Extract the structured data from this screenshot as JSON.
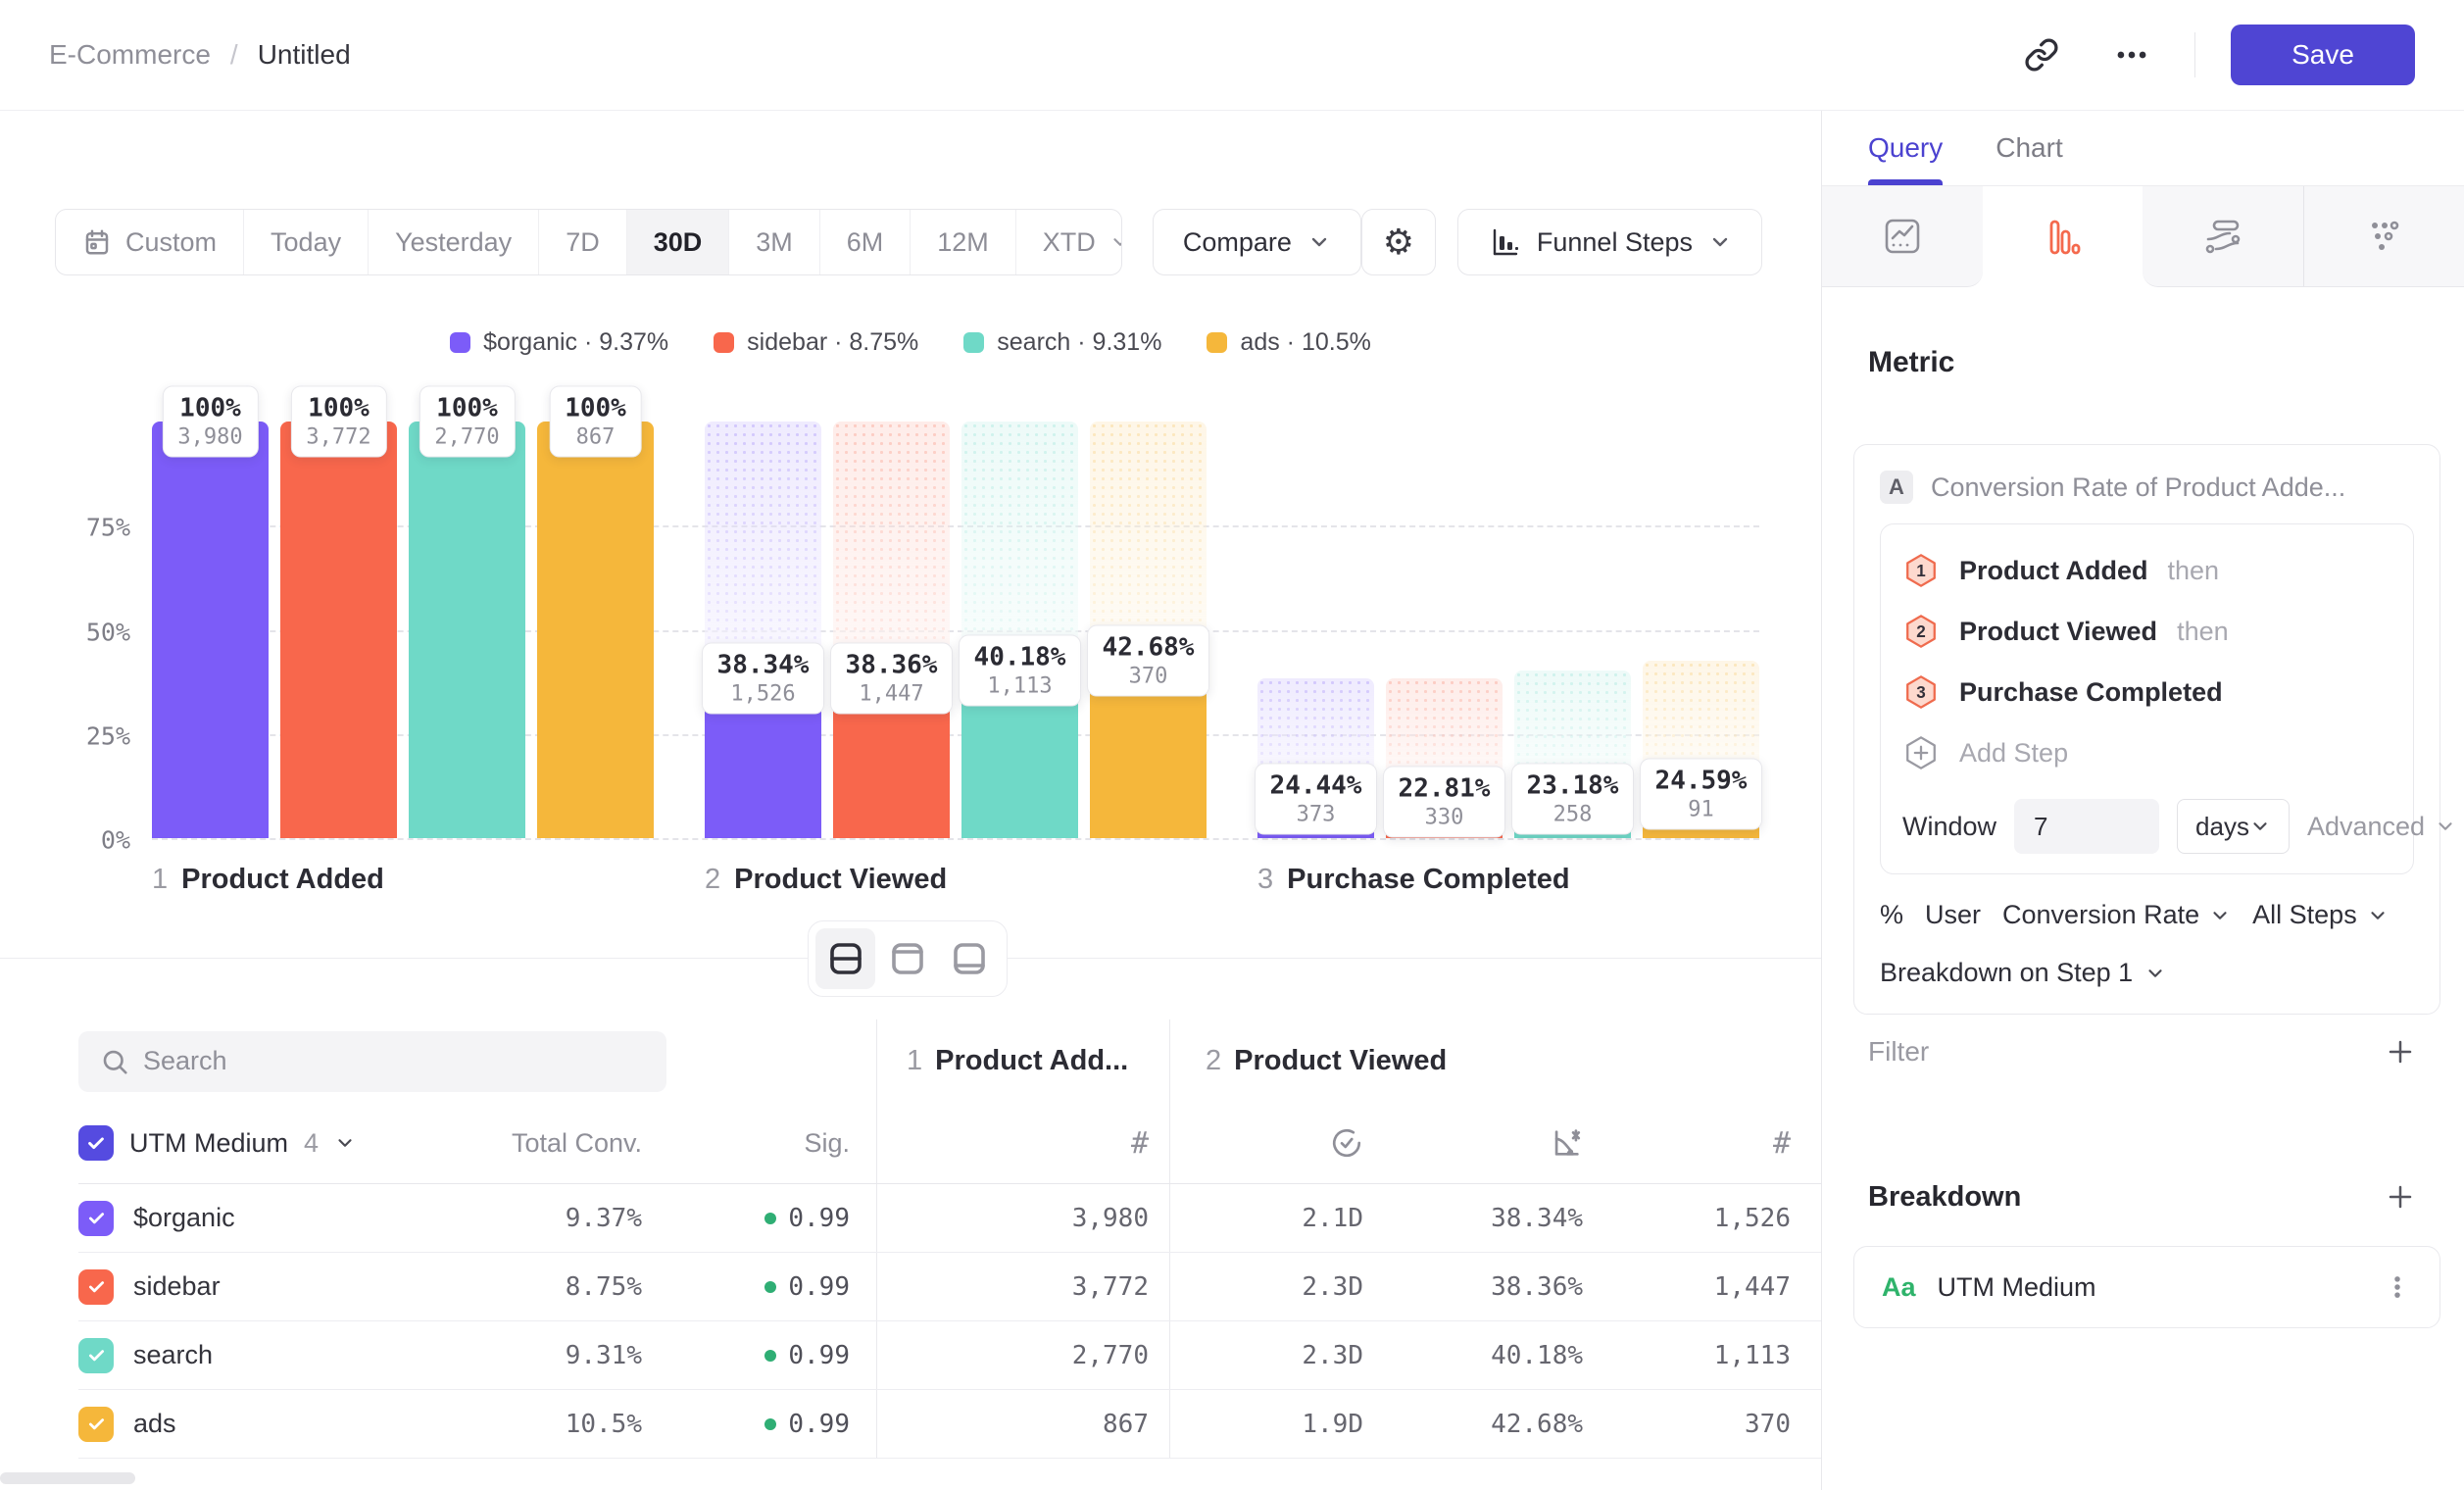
{
  "breadcrumb": {
    "project": "E-Commerce",
    "separator": "/",
    "title": "Untitled"
  },
  "header": {
    "save_label": "Save"
  },
  "toolbar": {
    "date_ranges": [
      "Custom",
      "Today",
      "Yesterday",
      "7D",
      "30D",
      "3M",
      "6M",
      "12M",
      "XTD"
    ],
    "active_range": "30D",
    "compare_label": "Compare",
    "chart_type_label": "Funnel Steps"
  },
  "legend": [
    {
      "label": "$organic",
      "value": "9.37%",
      "color": "#7c5cf8"
    },
    {
      "label": "sidebar",
      "value": "8.75%",
      "color": "#f8674c"
    },
    {
      "label": "search",
      "value": "9.31%",
      "color": "#6fd9c7"
    },
    {
      "label": "ads",
      "value": "10.5%",
      "color": "#f5b73b"
    }
  ],
  "chart_data": {
    "type": "bar",
    "subtype": "funnel-steps",
    "ylim": [
      0,
      100
    ],
    "yticks": [
      {
        "label": "75%",
        "value": 75
      },
      {
        "label": "50%",
        "value": 50
      },
      {
        "label": "25%",
        "value": 25
      },
      {
        "label": "0%",
        "value": 0
      }
    ],
    "steps": [
      {
        "num": "1",
        "label": "Product Added"
      },
      {
        "num": "2",
        "label": "Product Viewed"
      },
      {
        "num": "3",
        "label": "Purchase Completed"
      }
    ],
    "series": [
      {
        "name": "$organic",
        "color": "#7c5cf8",
        "counts": [
          3980,
          1526,
          373
        ],
        "count_labels": [
          "3,980",
          "1,526",
          "373"
        ],
        "step_conversion_labels": [
          "100%",
          "38.34%",
          "24.44%"
        ],
        "bar_heights_pct_of_total": [
          100,
          38.34,
          9.37
        ]
      },
      {
        "name": "sidebar",
        "color": "#f8674c",
        "counts": [
          3772,
          1447,
          330
        ],
        "count_labels": [
          "3,772",
          "1,447",
          "330"
        ],
        "step_conversion_labels": [
          "100%",
          "38.36%",
          "22.81%"
        ],
        "bar_heights_pct_of_total": [
          100,
          38.36,
          8.75
        ]
      },
      {
        "name": "search",
        "color": "#6fd9c7",
        "counts": [
          2770,
          1113,
          258
        ],
        "count_labels": [
          "2,770",
          "1,113",
          "258"
        ],
        "step_conversion_labels": [
          "100%",
          "40.18%",
          "23.18%"
        ],
        "bar_heights_pct_of_total": [
          100,
          40.18,
          9.31
        ]
      },
      {
        "name": "ads",
        "color": "#f5b73b",
        "counts": [
          867,
          370,
          91
        ],
        "count_labels": [
          "867",
          "370",
          "91"
        ],
        "step_conversion_labels": [
          "100%",
          "42.68%",
          "24.59%"
        ],
        "bar_heights_pct_of_total": [
          100,
          42.68,
          10.5
        ]
      }
    ]
  },
  "table": {
    "search_placeholder": "Search",
    "group_label": "UTM Medium",
    "group_count": "4",
    "col_total": "Total Conv.",
    "col_sig": "Sig.",
    "group1": {
      "num": "1",
      "label": "Product Add..."
    },
    "group2": {
      "num": "2",
      "label": "Product Viewed"
    },
    "rows": [
      {
        "label": "$organic",
        "color": "#7c5cf8",
        "total": "9.37%",
        "sig": "0.99",
        "pa_count": "3,980",
        "pv_time": "2.1D",
        "pv_conv": "38.34%",
        "pv_count": "1,526"
      },
      {
        "label": "sidebar",
        "color": "#f8674c",
        "total": "8.75%",
        "sig": "0.99",
        "pa_count": "3,772",
        "pv_time": "2.3D",
        "pv_conv": "38.36%",
        "pv_count": "1,447"
      },
      {
        "label": "search",
        "color": "#6fd9c7",
        "total": "9.31%",
        "sig": "0.99",
        "pa_count": "2,770",
        "pv_time": "2.3D",
        "pv_conv": "40.18%",
        "pv_count": "1,113"
      },
      {
        "label": "ads",
        "color": "#f5b73b",
        "total": "10.5%",
        "sig": "0.99",
        "pa_count": "867",
        "pv_time": "1.9D",
        "pv_conv": "42.68%",
        "pv_count": "370"
      }
    ]
  },
  "panel": {
    "tabs": {
      "query": "Query",
      "chart": "Chart"
    },
    "metric_heading": "Metric",
    "metric_badge": "A",
    "metric_title": "Conversion Rate of Product Adde...",
    "steps": [
      {
        "num": "1",
        "label": "Product Added",
        "suffix": "then"
      },
      {
        "num": "2",
        "label": "Product Viewed",
        "suffix": "then"
      },
      {
        "num": "3",
        "label": "Purchase Completed",
        "suffix": ""
      }
    ],
    "add_step": "Add Step",
    "window": {
      "label": "Window",
      "value": "7",
      "unit": "days",
      "advanced": "Advanced"
    },
    "measured": {
      "pct": "%",
      "user": "User",
      "metric": "Conversion Rate",
      "steps": "All Steps"
    },
    "breakdown_on": "Breakdown on Step 1",
    "filter_label": "Filter",
    "breakdown_label": "Breakdown",
    "breakdown_item": {
      "type_badge": "Aa",
      "label": "UTM Medium"
    }
  }
}
